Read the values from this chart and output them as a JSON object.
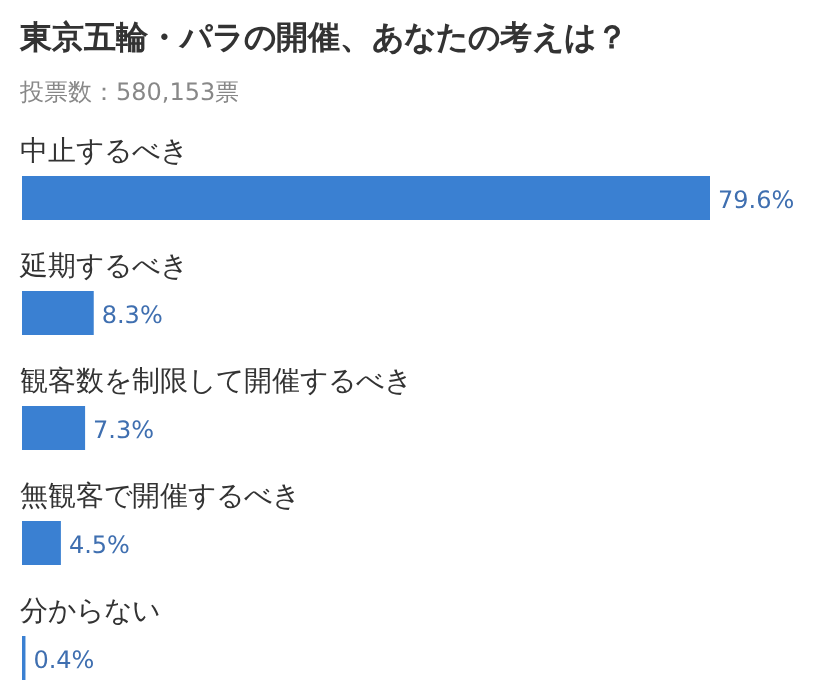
{
  "chart_data": {
    "type": "bar",
    "orientation": "horizontal",
    "title": "東京五輪・パラの開催、あなたの考えは？",
    "subtitle": "投票数：580,153票",
    "categories": [
      "中止するべき",
      "延期するべき",
      "観客数を制限して開催するべき",
      "無観客で開催するべき",
      "分からない"
    ],
    "values": [
      79.6,
      8.3,
      7.3,
      4.5,
      0.4
    ],
    "value_labels": [
      "79.6%",
      "8.3%",
      "7.3%",
      "4.5%",
      "0.4%"
    ],
    "color": "#3a80d2"
  }
}
